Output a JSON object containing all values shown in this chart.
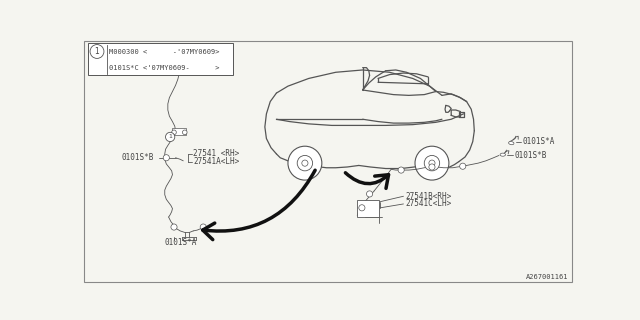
{
  "bg_color": "#f5f5f0",
  "line_color": "#555555",
  "text_color": "#444444",
  "bottom_label": "A267001161",
  "legend_row1": "M000300 <      -'07MY0609>",
  "legend_row2": "0101S*C <'07MY0609-      >",
  "label_0101SA_left": "0101S*A",
  "label_0101SB_left": "0101S*B",
  "label_27541_rh": "27541 <RH>",
  "label_27541a_lh": "27541A<LH>",
  "label_0101SA_right": "0101S*A",
  "label_0101SB_right": "0101S*B",
  "label_27541B_rh": "27541B<RH>",
  "label_27541C_lh": "27541C<LH>",
  "fs": 5.5
}
